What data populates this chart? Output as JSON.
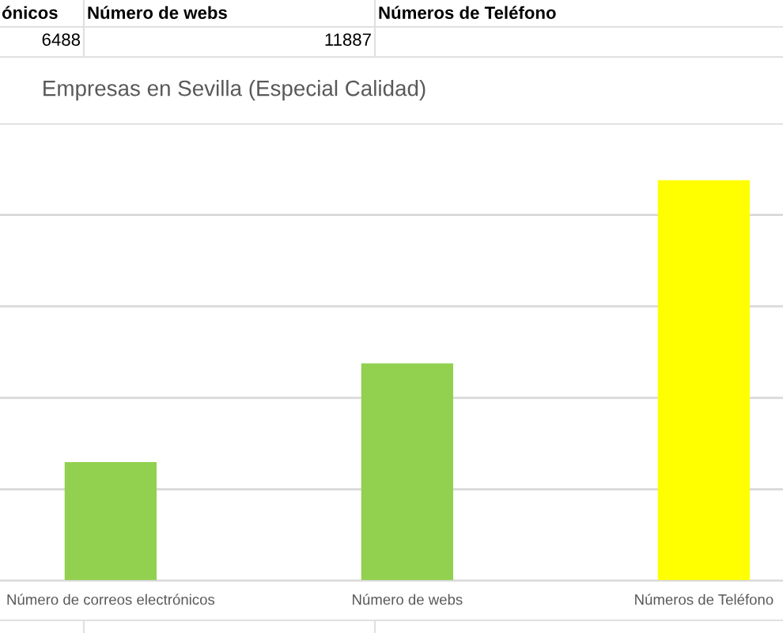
{
  "chart_data": {
    "type": "bar",
    "title": "Empresas en Sevilla (Especial Calidad)",
    "categories": [
      "Número de correos electrónicos",
      "Número de webs",
      "Números de Teléfono"
    ],
    "values": [
      6488,
      11887,
      21900
    ],
    "value_labels": [
      "6488",
      "11887",
      null
    ],
    "colors": [
      "#92d050",
      "#92d050",
      "#ffff00"
    ],
    "ylim": [
      0,
      25000
    ],
    "yticks": [
      {
        "value": 0,
        "label": null
      },
      {
        "value": 5000,
        "label": null
      },
      {
        "value": 10000,
        "label": null
      },
      {
        "value": 15000,
        "label": null
      },
      {
        "value": 20000,
        "label": null
      },
      {
        "value": 25000,
        "label": null
      }
    ],
    "grid": "y",
    "tick_labels": "x",
    "annotations": [
      "ónicos",
      "Número de webs",
      "Números de Teléfono"
    ]
  }
}
